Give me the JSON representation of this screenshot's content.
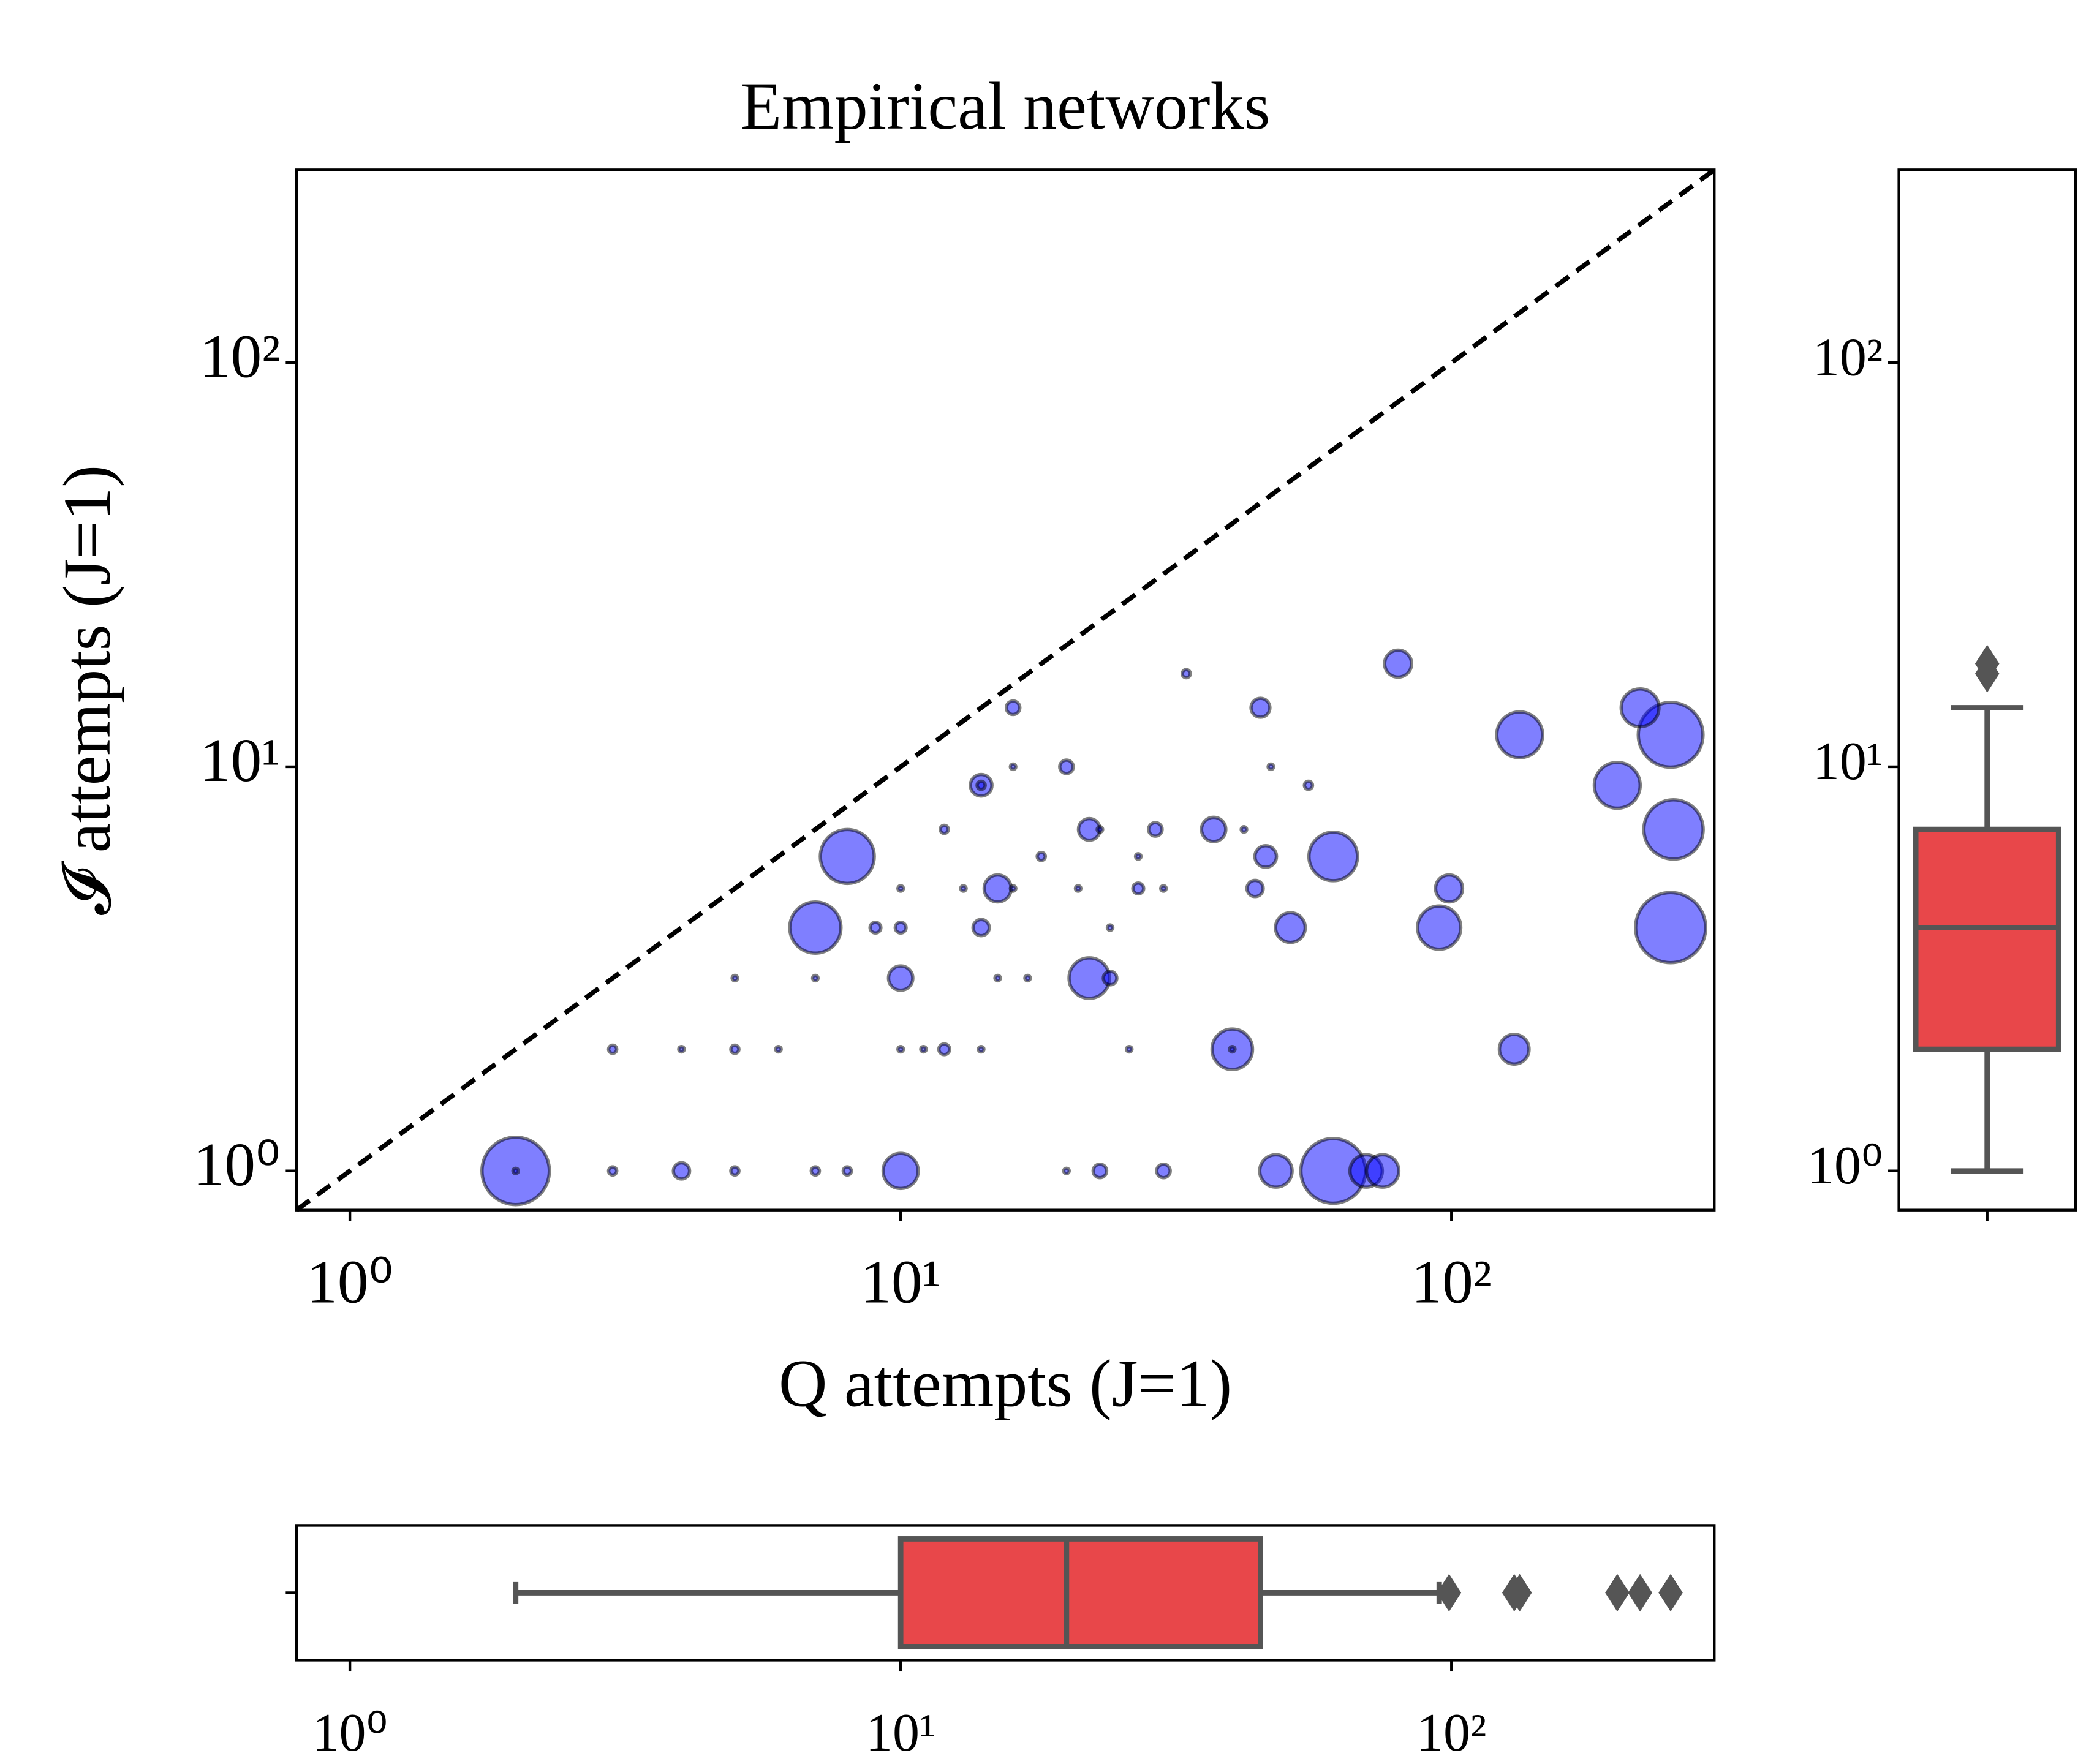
{
  "chart_data": [
    {
      "type": "scatter",
      "title": "Empirical networks",
      "x_label": "Q attempts (J=1)",
      "y_label": "𝓘 attempts (J=1)",
      "x": [
        2,
        2,
        3,
        4,
        5,
        7,
        8,
        10,
        20,
        23,
        30,
        48,
        61,
        70,
        75,
        3,
        4,
        5,
        6,
        10,
        11,
        12,
        14,
        26,
        40,
        40,
        130,
        5,
        7,
        10,
        15,
        17,
        22,
        24,
        7,
        9,
        10,
        14,
        24,
        51,
        95,
        250,
        10,
        13,
        15,
        16,
        21,
        27,
        30,
        44,
        99,
        8,
        18,
        27,
        46,
        61,
        12,
        22,
        23,
        29,
        37,
        42,
        253,
        14,
        14,
        55,
        200,
        16,
        20,
        47,
        133,
        250,
        16,
        45,
        220,
        33,
        80
      ],
      "y": [
        1,
        1,
        1,
        1,
        1,
        1,
        1,
        1,
        1,
        1,
        1,
        1,
        1,
        1,
        1,
        2,
        2,
        2,
        2,
        2,
        2,
        2,
        2,
        2,
        2,
        2,
        2,
        3,
        3,
        3,
        3,
        3,
        3,
        3,
        4,
        4,
        4,
        4,
        4,
        4,
        4,
        4,
        5,
        5,
        5,
        5,
        5,
        5,
        5,
        5,
        5,
        6,
        6,
        6,
        6,
        6,
        7,
        7,
        7,
        7,
        7,
        7,
        7,
        9,
        9,
        9,
        9,
        10,
        10,
        10,
        12,
        12,
        14,
        14,
        14,
        17,
        18
      ],
      "sizes": [
        25,
        2,
        3,
        6,
        3,
        3,
        3,
        13,
        2,
        5,
        5,
        12,
        24,
        12,
        12,
        3,
        2,
        3,
        2,
        2,
        2,
        4,
        2,
        2,
        15,
        2,
        11,
        2,
        2,
        9,
        2,
        2,
        15,
        5,
        19,
        4,
        4,
        6,
        2,
        11,
        16,
        26,
        2,
        2,
        10,
        2,
        2,
        4,
        2,
        6,
        10,
        20,
        3,
        2,
        8,
        18,
        3,
        8,
        2,
        5,
        9,
        2,
        22,
        8,
        3,
        3,
        17,
        2,
        5,
        2,
        17,
        24,
        5,
        7,
        14,
        3,
        10
      ],
      "color": "#0000ff",
      "edgecolor": "#000000",
      "alpha": 0.5,
      "xscale": "log",
      "yscale": "log",
      "diagonal": true,
      "xlim": [
        0.8,
        300
      ],
      "ylim": [
        0.8,
        300
      ],
      "xticks": [
        {
          "value": 1,
          "label": "10⁰"
        },
        {
          "value": 10,
          "label": "10¹"
        },
        {
          "value": 100,
          "label": "10²"
        }
      ],
      "yticks": [
        {
          "value": 1,
          "label": "10⁰"
        },
        {
          "value": 10,
          "label": "10¹"
        },
        {
          "value": 100,
          "label": "10²"
        }
      ]
    },
    {
      "type": "boxplot",
      "orientation": "vertical",
      "scale": "log",
      "color": "#e8474a",
      "edgecolor": "#555555",
      "q1": 2,
      "median": 4,
      "q3": 7,
      "whisker_low": 1,
      "whisker_high": 14,
      "fliers": [
        17,
        18
      ],
      "ylim": [
        0.8,
        300
      ],
      "yticks": [
        {
          "value": 1,
          "label": "10⁰"
        },
        {
          "value": 10,
          "label": "10¹"
        },
        {
          "value": 100,
          "label": "10²"
        }
      ]
    },
    {
      "type": "boxplot",
      "orientation": "horizontal",
      "scale": "log",
      "color": "#e8474a",
      "edgecolor": "#555555",
      "q1": 10,
      "median": 20,
      "q3": 45,
      "whisker_low": 2,
      "whisker_high": 95,
      "fliers": [
        99,
        130,
        133,
        200,
        220,
        250
      ],
      "xlim": [
        0.8,
        300
      ],
      "xticks": [
        {
          "value": 1,
          "label": "10⁰"
        },
        {
          "value": 10,
          "label": "10¹"
        },
        {
          "value": 100,
          "label": "10²"
        }
      ]
    }
  ]
}
